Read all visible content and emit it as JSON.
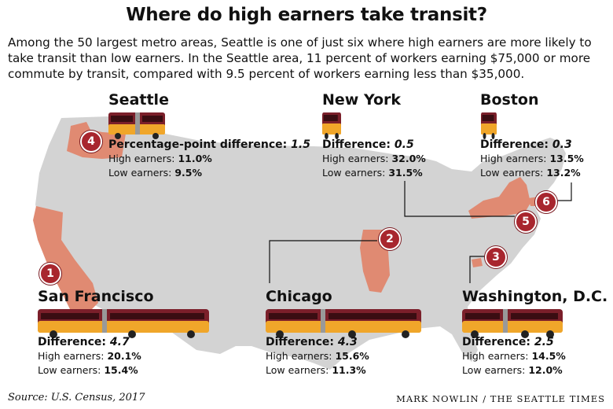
{
  "title": "Where do high earners take transit?",
  "subtitle": "Among the 50 largest metro areas, Seattle is one of just six where high earners are more likely to take transit than low earners. In the Seattle area, 11 percent of workers earning $75,000 or more commute by transit, compared with 9.5 percent of workers earning less than $35,000.",
  "colors": {
    "map": "#d3d3d3",
    "state": "#e08a72",
    "badge": "#a8262e",
    "bus_top": "#7b1f2a",
    "bus_body": "#f0a62a"
  },
  "cities": [
    {
      "rank": "4",
      "name": "Seattle",
      "diff_label": "Percentage-point difference:",
      "diff": "1.5",
      "high_label": "High earners:",
      "high": "11.0%",
      "low_label": "Low earners:",
      "low": "9.5%"
    },
    {
      "rank": "",
      "name": "New York",
      "diff_label": "Difference:",
      "diff": "0.5",
      "high_label": "High earners:",
      "high": "32.0%",
      "low_label": "Low earners:",
      "low": "31.5%"
    },
    {
      "rank": "",
      "name": "Boston",
      "diff_label": "Difference:",
      "diff": "0.3",
      "high_label": "High earners:",
      "high": "13.5%",
      "low_label": "Low earners:",
      "low": "13.2%"
    },
    {
      "rank": "1",
      "name": "San Francisco",
      "diff_label": "Difference:",
      "diff": "4.7",
      "high_label": "High earners:",
      "high": "20.1%",
      "low_label": "Low earners:",
      "low": "15.4%"
    },
    {
      "rank": "2",
      "name": "Chicago",
      "diff_label": "Difference:",
      "diff": "4.3",
      "high_label": "High earners:",
      "high": "15.6%",
      "low_label": "Low earners:",
      "low": "11.3%"
    },
    {
      "rank": "3",
      "name": "Washington, D.C.",
      "diff_label": "Difference:",
      "diff": "2.5",
      "high_label": "High earners:",
      "high": "14.5%",
      "low_label": "Low earners:",
      "low": "12.0%"
    }
  ],
  "badges": {
    "ny": "5",
    "boston": "6"
  },
  "source": "Source: U.S. Census, 2017",
  "credit": "MARK NOWLIN / THE SEATTLE TIMES"
}
